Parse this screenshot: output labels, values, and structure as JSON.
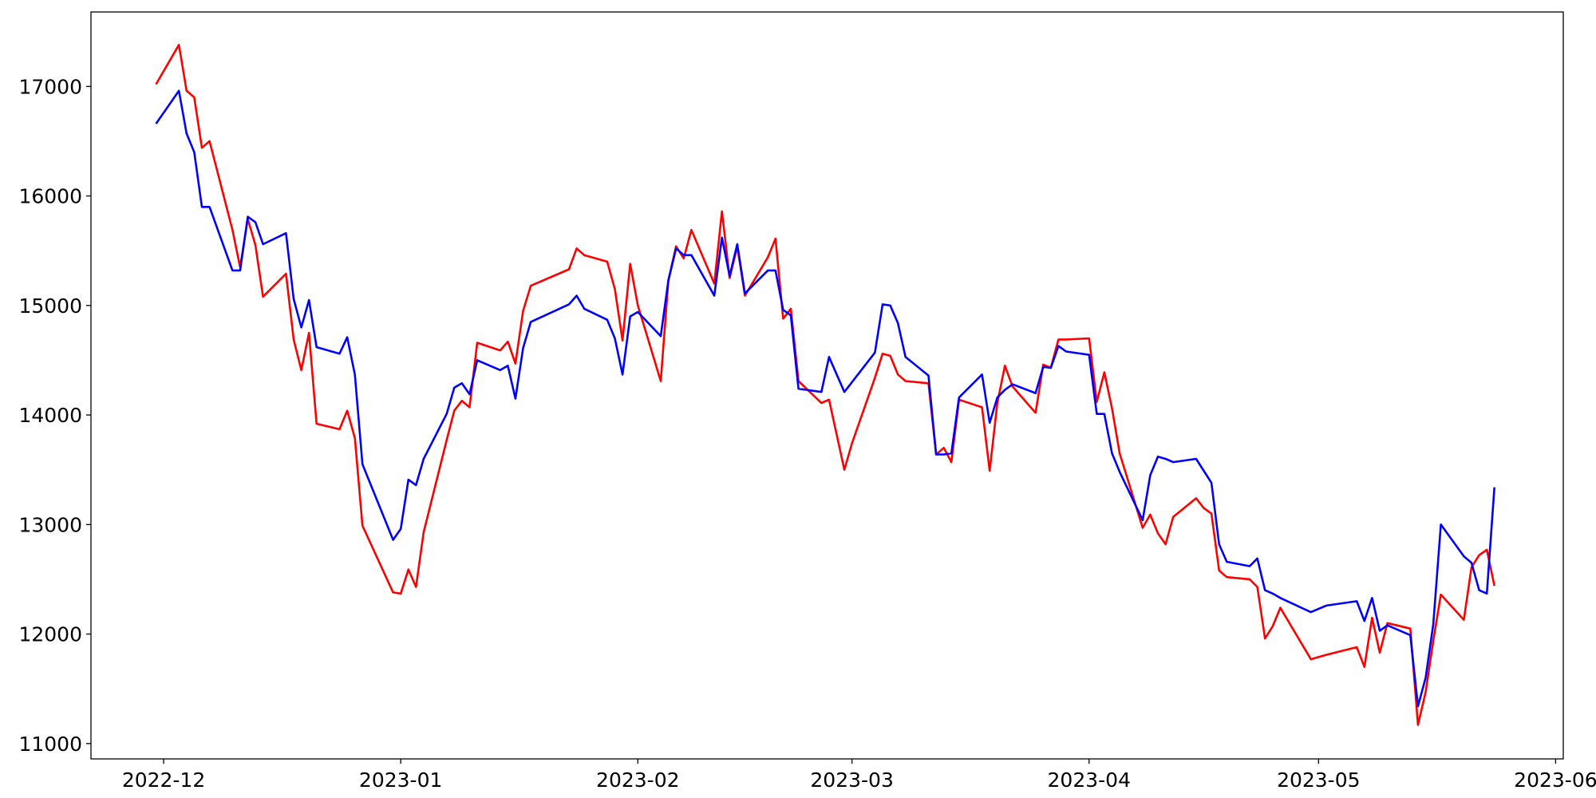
{
  "chart_data": {
    "type": "line",
    "x": [
      -1,
      2,
      3,
      4,
      5,
      6,
      9,
      10,
      11,
      12,
      13,
      16,
      17,
      18,
      19,
      20,
      23,
      24,
      25,
      26,
      30,
      31,
      32,
      33,
      34,
      37,
      38,
      39,
      40,
      41,
      44,
      45,
      46,
      47,
      48,
      53,
      54,
      55,
      58,
      59,
      60,
      61,
      62,
      65,
      66,
      67,
      68,
      69,
      72,
      73,
      74,
      75,
      76,
      79,
      80,
      81,
      82,
      83,
      86,
      87,
      89,
      90,
      93,
      94,
      95,
      96,
      97,
      100,
      101,
      102,
      103,
      104,
      107,
      108,
      109,
      110,
      111,
      114,
      115,
      116,
      117,
      118,
      121,
      122,
      123,
      124,
      125,
      128,
      129,
      130,
      131,
      132,
      135,
      136,
      137,
      138,
      139,
      142,
      143,
      144,
      145,
      146,
      150,
      152,
      156,
      157,
      158,
      159,
      160,
      163,
      164,
      165,
      166,
      167,
      170,
      171,
      172,
      173,
      174
    ],
    "series": [
      {
        "name": "red",
        "color": "#ff0000",
        "values": [
          17020,
          17380,
          16960,
          16900,
          16440,
          16500,
          15690,
          15350,
          15790,
          15550,
          15080,
          15290,
          14690,
          14410,
          14750,
          13920,
          13870,
          14040,
          13790,
          12990,
          12380,
          12370,
          12590,
          12430,
          12930,
          13770,
          14040,
          14130,
          14070,
          14660,
          14590,
          14670,
          14470,
          14950,
          15180,
          15330,
          15520,
          15460,
          15400,
          15150,
          14680,
          15380,
          15000,
          14310,
          15230,
          15540,
          15430,
          15690,
          15200,
          15860,
          15250,
          15540,
          15090,
          15440,
          15610,
          14880,
          14970,
          14310,
          14110,
          14140,
          13500,
          13740,
          14340,
          14560,
          14540,
          14370,
          14310,
          14290,
          13640,
          13700,
          13570,
          14140,
          14070,
          13490,
          14110,
          14450,
          14260,
          14020,
          14460,
          14430,
          14690,
          14690,
          14700,
          14120,
          14390,
          14060,
          13650,
          12970,
          13090,
          12920,
          12820,
          13070,
          13240,
          13150,
          13100,
          12580,
          12520,
          12500,
          12430,
          11960,
          12070,
          12240,
          11770,
          11810,
          11880,
          11700,
          12150,
          11830,
          12100,
          12050,
          11170,
          11470,
          11940,
          12360,
          12130,
          12610,
          12720,
          12770,
          12440
        ]
      },
      {
        "name": "blue",
        "color": "#0000ff",
        "values": [
          16660,
          16960,
          16570,
          16400,
          15900,
          15900,
          15320,
          15320,
          15810,
          15760,
          15560,
          15660,
          15060,
          14800,
          15050,
          14620,
          14560,
          14710,
          14370,
          13550,
          12860,
          12960,
          13410,
          13360,
          13600,
          14010,
          14250,
          14290,
          14190,
          14500,
          14410,
          14450,
          14150,
          14610,
          14850,
          15010,
          15090,
          14970,
          14870,
          14700,
          14370,
          14900,
          14940,
          14720,
          15230,
          15520,
          15460,
          15460,
          15090,
          15620,
          15270,
          15560,
          15110,
          15320,
          15320,
          14960,
          14910,
          14240,
          14210,
          14530,
          14210,
          14300,
          14570,
          15010,
          15000,
          14840,
          14530,
          14360,
          13640,
          13640,
          13650,
          14160,
          14370,
          13930,
          14160,
          14230,
          14280,
          14200,
          14440,
          14430,
          14630,
          14580,
          14550,
          14010,
          14010,
          13650,
          13480,
          13040,
          13450,
          13620,
          13600,
          13570,
          13600,
          13490,
          13380,
          12820,
          12660,
          12620,
          12690,
          12400,
          12370,
          12330,
          12200,
          12260,
          12300,
          12120,
          12330,
          12030,
          12080,
          11990,
          11340,
          11600,
          12090,
          13000,
          12710,
          12650,
          12400,
          12370,
          13340
        ]
      }
    ],
    "xlim": [
      -9.5,
      183
    ],
    "xticks": [
      {
        "value": 0,
        "label": "2022-12"
      },
      {
        "value": 31,
        "label": "2023-01"
      },
      {
        "value": 62,
        "label": "2023-02"
      },
      {
        "value": 90,
        "label": "2023-03"
      },
      {
        "value": 121,
        "label": "2023-04"
      },
      {
        "value": 151,
        "label": "2023-05"
      },
      {
        "value": 182,
        "label": "2023-06"
      }
    ],
    "ylim": [
      10860,
      17680
    ],
    "yticks": [
      11000,
      12000,
      13000,
      14000,
      15000,
      16000,
      17000
    ],
    "grid": false
  }
}
